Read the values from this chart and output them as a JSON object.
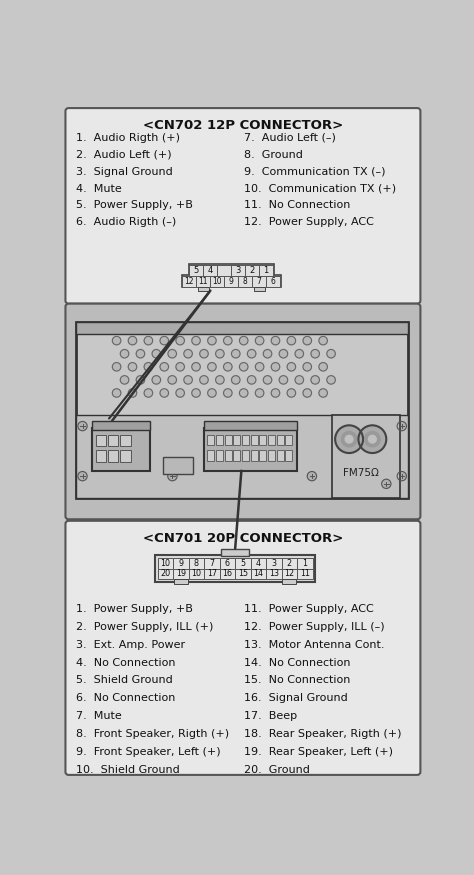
{
  "bg_color": "#c8c8c8",
  "box_bg": "#e8e8e8",
  "cn702_title": "<CN702 12P CONNECTOR>",
  "cn702_pins_left": [
    "1.  Audio Rigth (+)",
    "2.  Audio Left (+)",
    "3.  Signal Ground",
    "4.  Mute",
    "5.  Power Supply, +B",
    "6.  Audio Rigth (–)"
  ],
  "cn702_pins_right": [
    "7.  Audio Left (–)",
    "8.  Ground",
    "9.  Communication TX (–)",
    "10.  Communication TX (+)",
    "11.  No Connection",
    "12.  Power Supply, ACC"
  ],
  "cn701_title": "<CN701 20P CONNECTOR>",
  "cn701_pins_left": [
    "1.  Power Supply, +B",
    "2.  Power Supply, ILL (+)",
    "3.  Ext. Amp. Power",
    "4.  No Connection",
    "5.  Shield Ground",
    "6.  No Connection",
    "7.  Mute",
    "8.  Front Speaker, Rigth (+)",
    "9.  Front Speaker, Left (+)",
    "10.  Shield Ground"
  ],
  "cn701_pins_right": [
    "11.  Power Supply, ACC",
    "12.  Power Supply, ILL (–)",
    "13.  Motor Antenna Cont.",
    "14.  No Connection",
    "15.  No Connection",
    "16.  Signal Ground",
    "17.  Beep",
    "18.  Rear Speaker, Rigth (+)",
    "19.  Rear Speaker, Left (+)",
    "20.  Ground"
  ]
}
